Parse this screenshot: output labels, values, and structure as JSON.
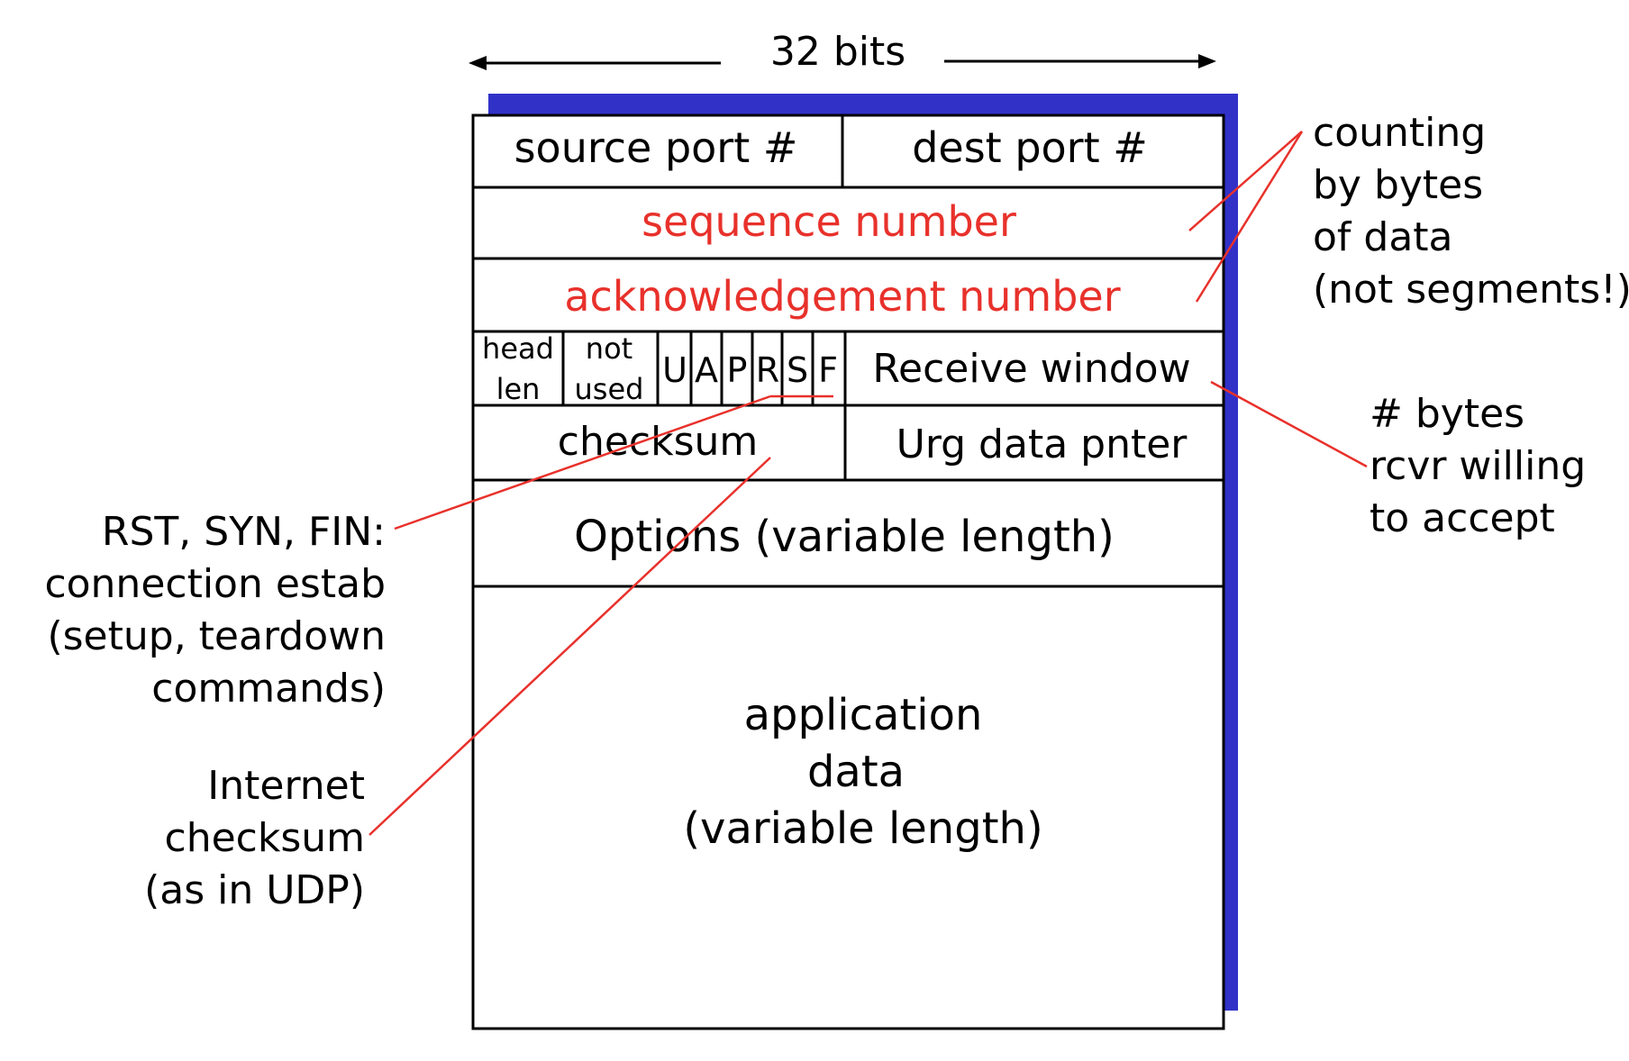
{
  "width_label": "32 bits",
  "colors": {
    "shadow": "#3131c8",
    "highlight": "#e8312b",
    "border": "#000000"
  },
  "fields": {
    "source_port": "source port #",
    "dest_port": "dest port #",
    "sequence_number": "sequence number",
    "ack_number": "acknowledgement number",
    "head_len": [
      "head",
      "len"
    ],
    "not_used": [
      "not",
      "used"
    ],
    "flags": [
      "U",
      "A",
      "P",
      "R",
      "S",
      "F"
    ],
    "receive_window": "Receive window",
    "checksum": "checksum",
    "urg_pointer": "Urg data pnter",
    "options": "Options (variable length)",
    "app_data": [
      "application",
      "data",
      "(variable length)"
    ]
  },
  "annotations": {
    "counting": [
      "counting",
      "by bytes",
      "of data",
      "(not segments!)"
    ],
    "rcvr": [
      "# bytes",
      "rcvr willing",
      "to accept"
    ],
    "flags": [
      "RST, SYN, FIN:",
      "connection estab",
      "(setup, teardown",
      "commands)"
    ],
    "checksum": [
      "Internet",
      "checksum",
      "(as in UDP)"
    ]
  }
}
